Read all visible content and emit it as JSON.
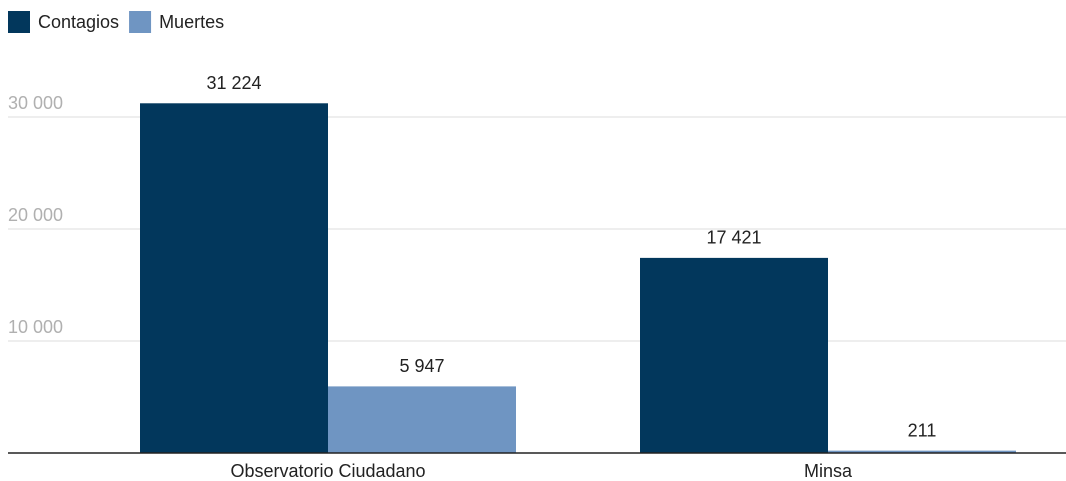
{
  "chart_data": {
    "type": "bar",
    "categories": [
      "Observatorio Ciudadano",
      "Minsa"
    ],
    "series": [
      {
        "name": "Contagios",
        "color": "#02375c",
        "values": [
          31224,
          17421
        ],
        "value_labels": [
          "31 224",
          "17 421"
        ]
      },
      {
        "name": "Muertes",
        "color": "#6f95c2",
        "values": [
          5947,
          211
        ],
        "value_labels": [
          "5 947",
          "211"
        ]
      }
    ],
    "ylim": [
      0,
      35000
    ],
    "yticks": [
      {
        "value": 10000,
        "label": "10 000"
      },
      {
        "value": 20000,
        "label": "20 000"
      },
      {
        "value": 30000,
        "label": "30 000"
      }
    ],
    "grid": true,
    "legend": "top-left"
  }
}
